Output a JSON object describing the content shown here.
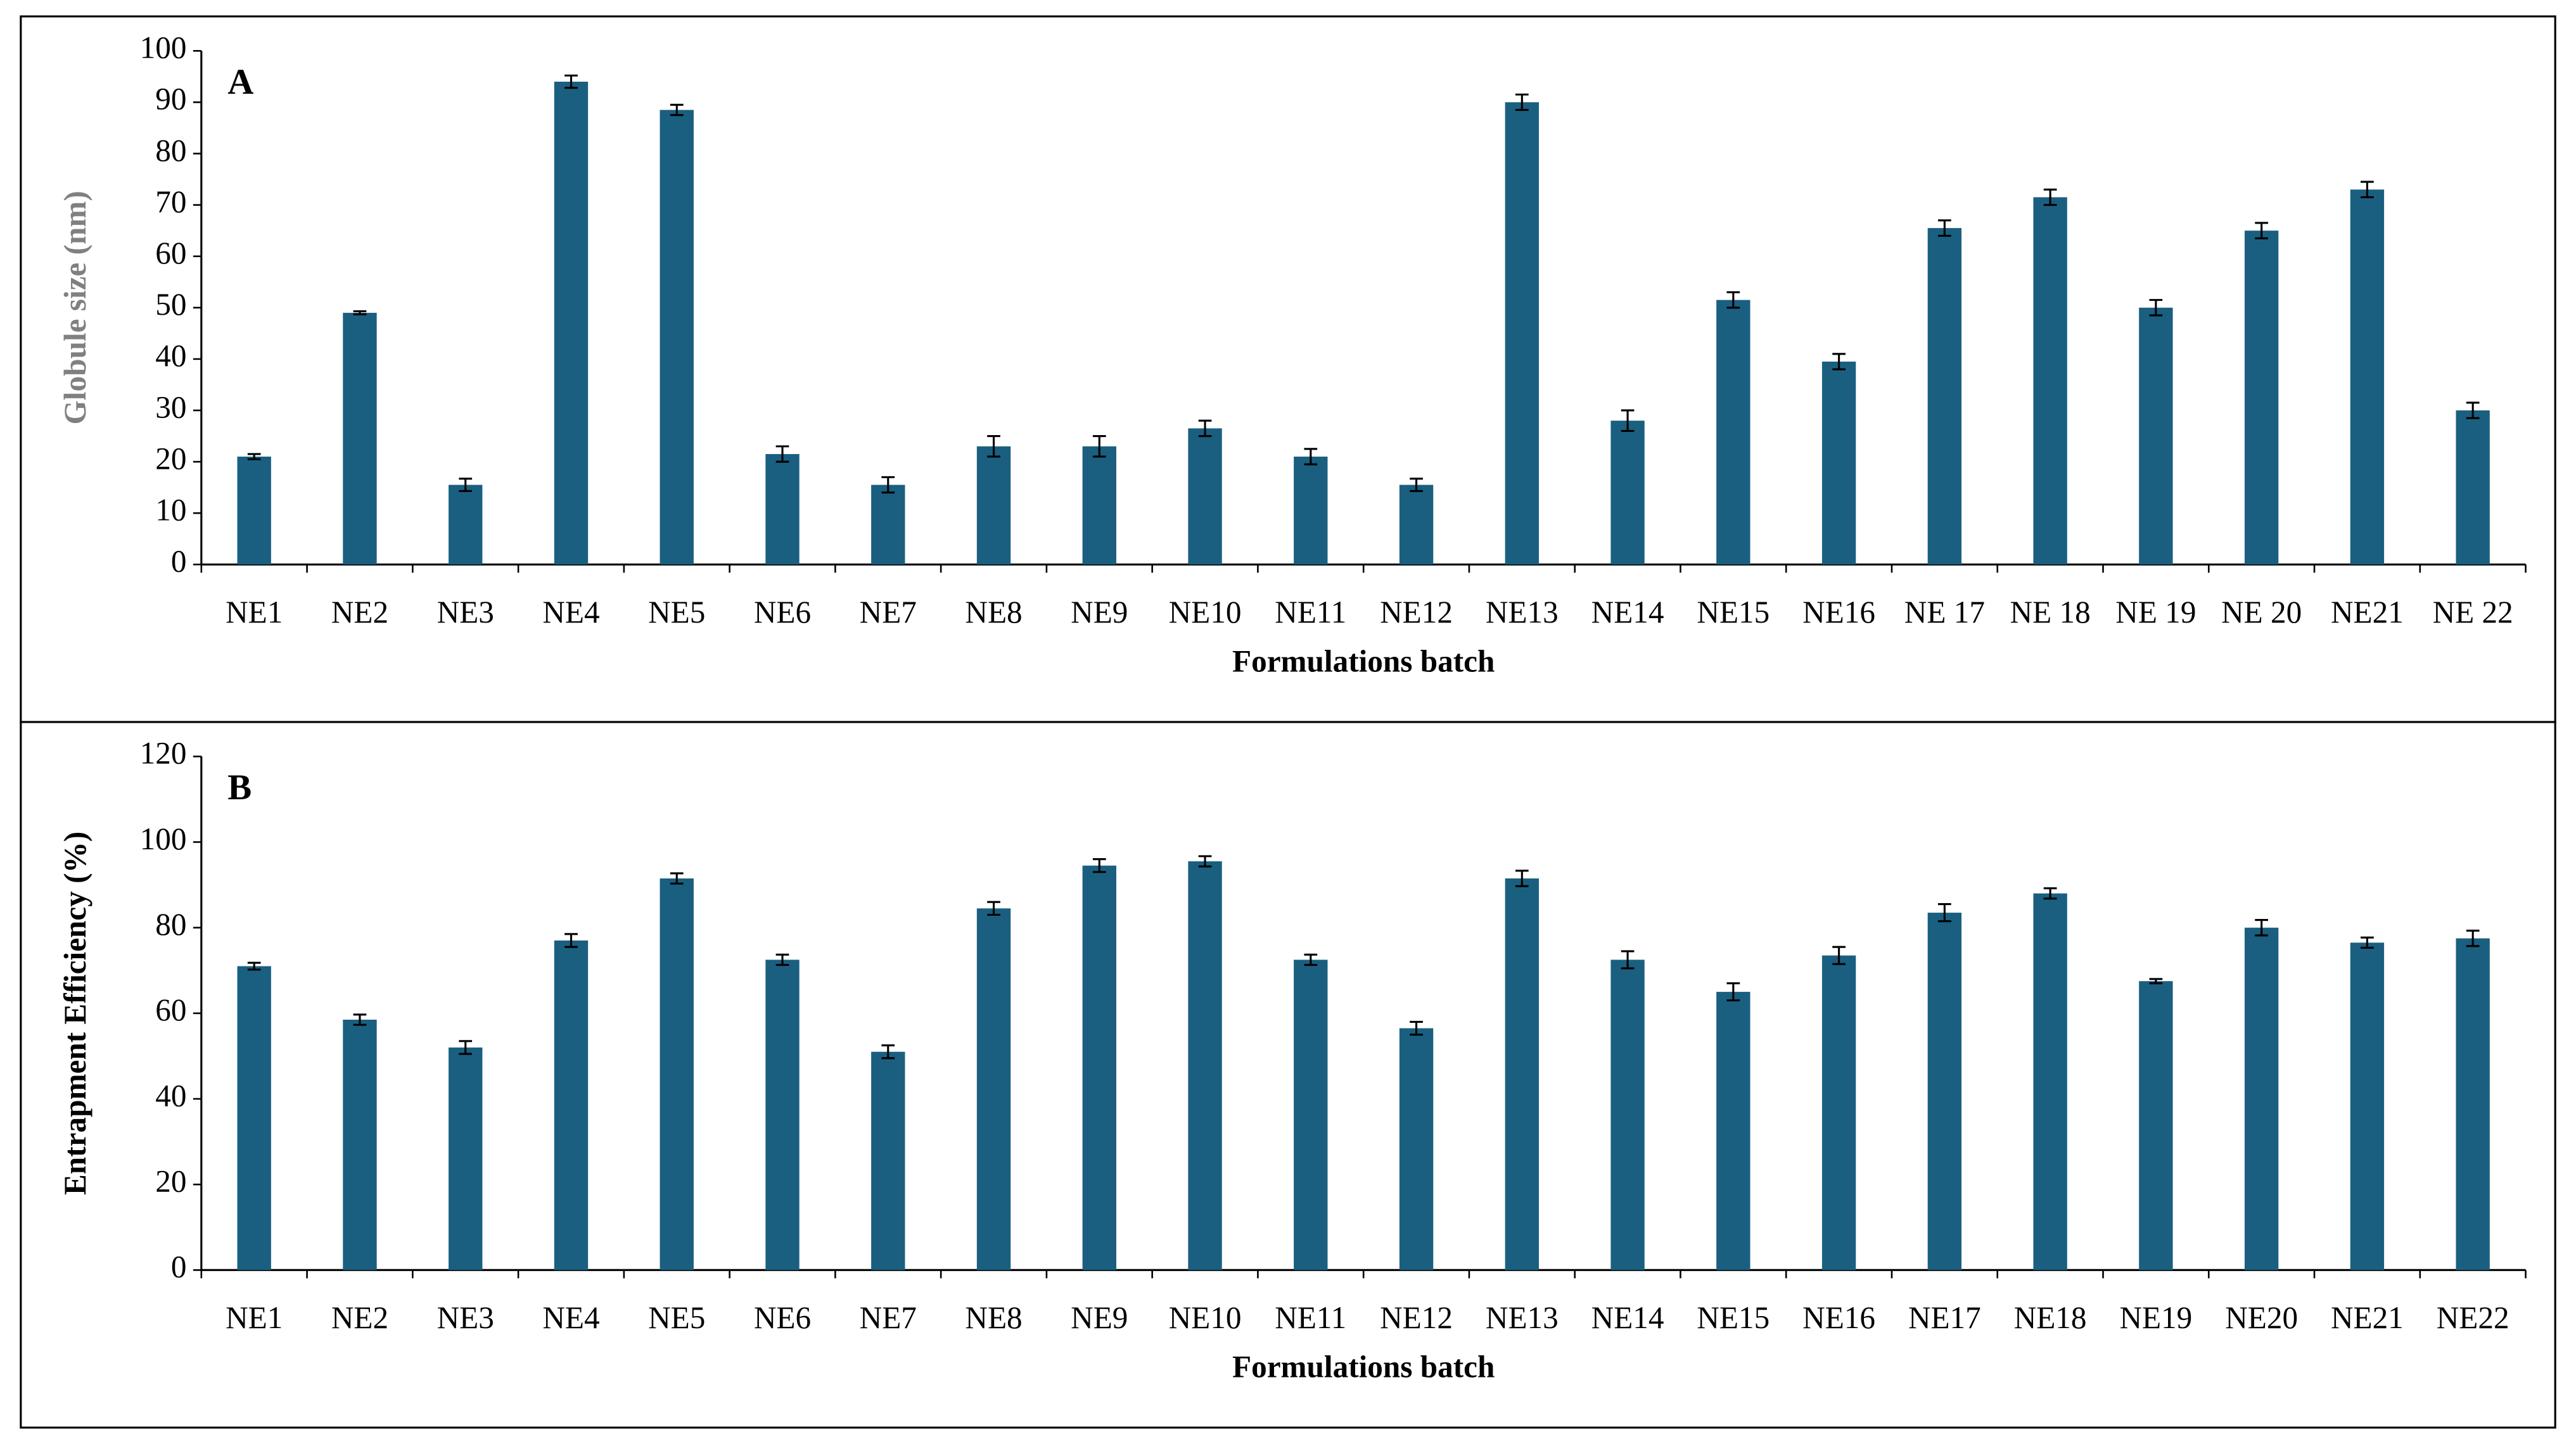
{
  "chart_data": [
    {
      "type": "bar",
      "panel_label": "A",
      "ylabel": "Globule size (nm)",
      "ylabel_color": "#808080",
      "xlabel": "Formulations batch",
      "categories": [
        "NE1",
        "NE2",
        "NE3",
        "NE4",
        "NE5",
        "NE6",
        "NE7",
        "NE8",
        "NE9",
        "NE10",
        "NE11",
        "NE12",
        "NE13",
        "NE14",
        "NE15",
        "NE16",
        "NE 17",
        "NE 18",
        "NE 19",
        "NE 20",
        "NE21",
        "NE 22"
      ],
      "values": [
        21,
        49,
        15.5,
        94,
        88.5,
        21.5,
        15.5,
        23,
        23,
        26.5,
        21,
        15.5,
        90,
        28,
        51.5,
        39.5,
        65.5,
        71.5,
        50,
        65,
        73,
        30
      ],
      "errors": [
        0.5,
        0.3,
        1.2,
        1.2,
        1,
        1.5,
        1.5,
        2,
        2,
        1.5,
        1.5,
        1.2,
        1.5,
        2,
        1.5,
        1.5,
        1.5,
        1.5,
        1.5,
        1.5,
        1.5,
        1.5
      ],
      "color": "#1a5f80",
      "ylim": [
        0,
        100
      ],
      "yticks": [
        0,
        10,
        20,
        30,
        40,
        50,
        60,
        70,
        80,
        90,
        100
      ]
    },
    {
      "type": "bar",
      "panel_label": "B",
      "ylabel": "Entrapment Efficiency (%)",
      "ylabel_color": "#000000",
      "xlabel": "Formulations batch",
      "categories": [
        "NE1",
        "NE2",
        "NE3",
        "NE4",
        "NE5",
        "NE6",
        "NE7",
        "NE8",
        "NE9",
        "NE10",
        "NE11",
        "NE12",
        "NE13",
        "NE14",
        "NE15",
        "NE16",
        "NE17",
        "NE18",
        "NE19",
        "NE20",
        "NE21",
        "NE22"
      ],
      "values": [
        71,
        58.5,
        52,
        77,
        91.5,
        72.5,
        51,
        84.5,
        94.5,
        95.5,
        72.5,
        56.5,
        91.5,
        72.5,
        65,
        73.5,
        83.5,
        88,
        67.5,
        80,
        76.5,
        77.5
      ],
      "errors": [
        0.8,
        1.2,
        1.5,
        1.5,
        1.2,
        1.2,
        1.5,
        1.5,
        1.5,
        1.2,
        1.2,
        1.5,
        1.8,
        2,
        2,
        2,
        2,
        1.2,
        0.5,
        1.8,
        1.2,
        1.8
      ],
      "color": "#1a5f80",
      "ylim": [
        0,
        120
      ],
      "yticks": [
        0,
        20,
        40,
        60,
        80,
        100,
        120
      ]
    }
  ]
}
